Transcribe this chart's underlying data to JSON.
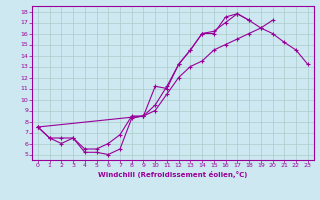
{
  "xlabel": "Windchill (Refroidissement éolien,°C)",
  "bg_color": "#cde8f0",
  "line_color": "#990099",
  "grid_color": "#aacccc",
  "xlim": [
    -0.5,
    23.5
  ],
  "ylim": [
    4.5,
    18.5
  ],
  "xticks": [
    0,
    1,
    2,
    3,
    4,
    5,
    6,
    7,
    8,
    9,
    10,
    11,
    12,
    13,
    14,
    15,
    16,
    17,
    18,
    19,
    20,
    21,
    22,
    23
  ],
  "yticks": [
    5,
    6,
    7,
    8,
    9,
    10,
    11,
    12,
    13,
    14,
    15,
    16,
    17,
    18
  ],
  "line1_x": [
    0,
    1,
    2,
    3,
    4,
    5,
    6,
    7,
    8,
    9,
    10,
    11,
    12,
    13,
    14,
    15,
    16,
    17,
    18
  ],
  "line1_y": [
    7.5,
    6.5,
    6.0,
    6.5,
    5.2,
    5.2,
    5.0,
    5.5,
    8.3,
    8.5,
    11.2,
    11.0,
    13.2,
    14.5,
    16.0,
    16.0,
    17.5,
    17.8,
    17.2
  ],
  "line2_x": [
    0,
    1,
    2,
    3,
    4,
    5,
    6,
    7,
    8,
    9,
    10,
    11,
    12,
    13,
    14,
    15,
    16,
    17,
    18,
    19,
    20
  ],
  "line2_y": [
    7.5,
    6.5,
    6.5,
    6.5,
    5.5,
    5.5,
    6.0,
    6.8,
    8.5,
    8.5,
    9.0,
    10.5,
    12.0,
    13.0,
    13.5,
    14.5,
    15.0,
    15.5,
    16.0,
    16.5,
    17.2
  ],
  "line3_x": [
    0,
    9,
    10,
    11,
    12,
    13,
    14,
    15,
    16,
    17,
    18,
    19,
    20,
    21,
    22,
    23
  ],
  "line3_y": [
    7.5,
    8.5,
    9.5,
    11.2,
    13.2,
    14.5,
    16.0,
    16.2,
    17.0,
    17.8,
    17.2,
    16.5,
    16.0,
    15.2,
    14.5,
    13.2
  ]
}
